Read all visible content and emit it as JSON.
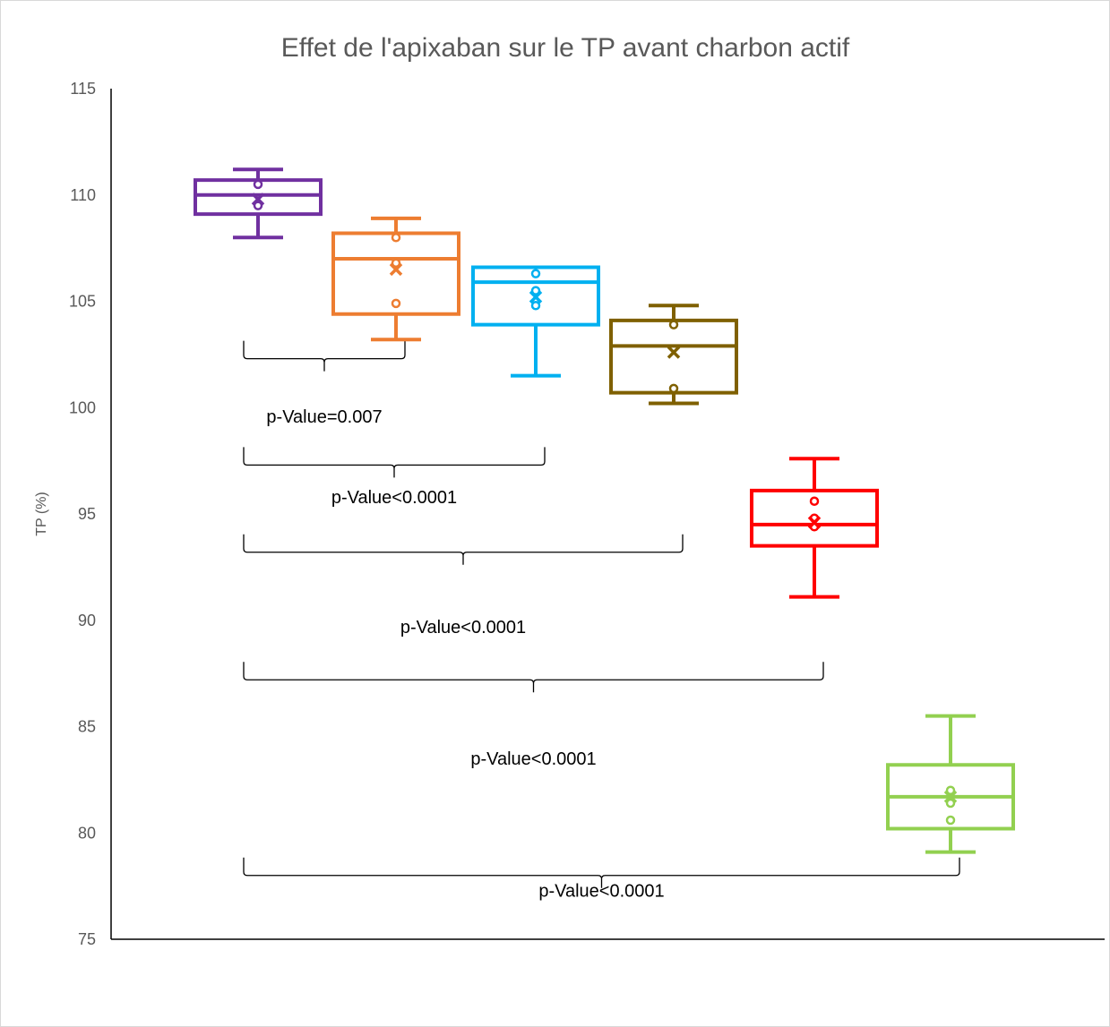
{
  "chart_data": {
    "type": "box",
    "title": "Effet de l'apixaban sur le TP avant charbon actif",
    "xlabel": "",
    "ylabel": "TP (%)",
    "ylim": [
      75,
      115
    ],
    "yticks": [
      75,
      80,
      85,
      90,
      95,
      100,
      105,
      110,
      115
    ],
    "grid": false,
    "series": [
      {
        "color": "#7030a0",
        "whisker_low": 108.0,
        "q1": 109.1,
        "median": 110.0,
        "q3": 110.7,
        "whisker_high": 111.2,
        "mean": 109.8,
        "points": [
          109.5,
          110.5
        ]
      },
      {
        "color": "#ed7d31",
        "whisker_low": 103.2,
        "q1": 104.4,
        "median": 107.0,
        "q3": 108.2,
        "whisker_high": 108.9,
        "mean": 106.5,
        "points": [
          104.9,
          106.8,
          108.0
        ]
      },
      {
        "color": "#00b0f0",
        "whisker_low": 101.5,
        "q1": 103.9,
        "median": 105.9,
        "q3": 106.6,
        "whisker_high": 106.6,
        "mean": 105.2,
        "points": [
          104.8,
          105.5,
          106.3
        ]
      },
      {
        "color": "#7f6000",
        "whisker_low": 100.2,
        "q1": 100.7,
        "median": 102.9,
        "q3": 104.1,
        "whisker_high": 104.8,
        "mean": 102.6,
        "points": [
          100.9,
          103.9
        ]
      },
      {
        "color": "#ff0000",
        "whisker_low": 91.1,
        "q1": 93.5,
        "median": 94.5,
        "q3": 96.1,
        "whisker_high": 97.6,
        "mean": 94.6,
        "points": [
          94.4,
          94.8,
          95.6
        ]
      },
      {
        "color": "#92d050",
        "whisker_low": 79.1,
        "q1": 80.2,
        "median": 81.7,
        "q3": 83.2,
        "whisker_high": 85.5,
        "mean": 81.7,
        "points": [
          80.6,
          81.4,
          82.0
        ]
      }
    ],
    "annotations": [
      {
        "text": "p-Value=0.007",
        "from_box": 1,
        "to_box": 2,
        "level": 102.3,
        "label_y": 99.6
      },
      {
        "text": "p-Value<0.0001",
        "from_box": 1,
        "to_box": 3,
        "level": 97.3,
        "label_y": 95.8
      },
      {
        "text": "p-Value<0.0001",
        "from_box": 1,
        "to_box": 4,
        "level": 93.2,
        "label_y": 89.7
      },
      {
        "text": "p-Value<0.0001",
        "from_box": 1,
        "to_box": 5,
        "level": 87.2,
        "label_y": 83.5
      },
      {
        "text": "p-Value<0.0001",
        "from_box": 1,
        "to_box": 6,
        "level": 78.0,
        "label_y": 77.3
      }
    ]
  }
}
